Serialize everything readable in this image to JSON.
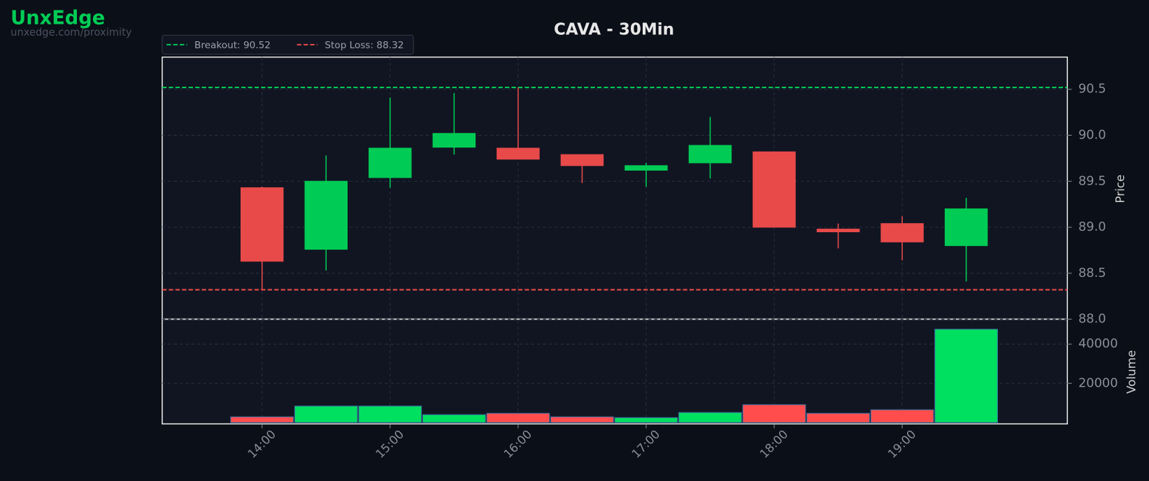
{
  "brand": {
    "name": "UnxEdge",
    "url": "unxedge.com/proximity"
  },
  "chart_data": {
    "type": "candlestick",
    "title": "CAVA - 30Min",
    "x": [
      14,
      14.5,
      15,
      15.5,
      16,
      16.5,
      17,
      17.5,
      18,
      18.5,
      19,
      19.5
    ],
    "xlim": [
      13.22,
      20.29
    ],
    "xticks": [
      {
        "value": 14,
        "label": "14:00"
      },
      {
        "value": 15,
        "label": "15:00"
      },
      {
        "value": 16,
        "label": "16:00"
      },
      {
        "value": 17,
        "label": "17:00"
      },
      {
        "value": 18,
        "label": "18:00"
      },
      {
        "value": 19,
        "label": "19:00"
      }
    ],
    "open": [
      89.43,
      88.76,
      89.54,
      89.87,
      89.86,
      89.79,
      89.62,
      89.7,
      89.82,
      88.98,
      89.04,
      88.8
    ],
    "high": [
      89.44,
      89.78,
      90.41,
      90.46,
      90.52,
      89.79,
      89.7,
      90.2,
      89.82,
      89.04,
      89.12,
      89.32
    ],
    "low": [
      88.32,
      88.53,
      89.43,
      89.79,
      89.74,
      89.48,
      89.44,
      89.53,
      89.0,
      88.77,
      88.64,
      88.41
    ],
    "close": [
      88.63,
      89.5,
      89.86,
      90.02,
      89.74,
      89.67,
      89.67,
      89.89,
      89.0,
      88.95,
      88.84,
      89.2
    ],
    "up_color": "#00cc55",
    "down_color": "#e84a4a",
    "ylabel": "Price",
    "ylim": [
      88.0,
      90.85
    ],
    "yticks": [
      {
        "value": 88,
        "label": "88.0"
      },
      88.5,
      {
        "value": 89,
        "label": "89.0"
      },
      89.5,
      {
        "value": 90,
        "label": "90.0"
      },
      90.5
    ],
    "levels": [
      {
        "name": "Breakout: 90.52",
        "value": 90.52,
        "color": "#00c853"
      },
      {
        "name": "Stop Loss: 88.32",
        "value": 88.32,
        "color": "#e84a4a"
      }
    ],
    "volume": {
      "ylabel": "Volume",
      "values": [
        2900,
        8400,
        8400,
        4000,
        4700,
        2900,
        2500,
        5100,
        9100,
        4700,
        6500,
        47600
      ],
      "up_color": "#00e060",
      "down_color": "#ff4d4d",
      "ylim": [
        -700,
        52700
      ],
      "yticks": [
        20000,
        40000
      ]
    },
    "grid": true
  }
}
